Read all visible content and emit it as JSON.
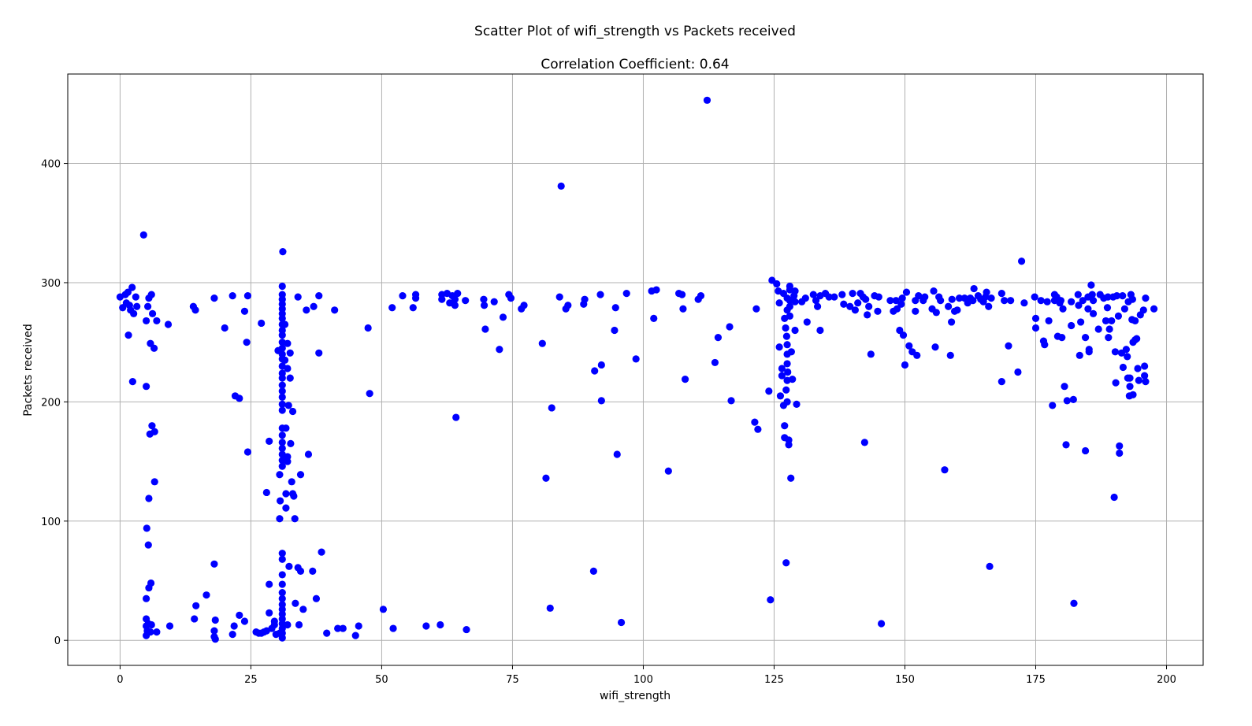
{
  "chart_data": {
    "type": "scatter",
    "title": "Scatter Plot of wifi_strength vs Packets received",
    "subtitle": "Correlation Coefficient: 0.64",
    "xlabel": "wifi_strength",
    "ylabel": "Packets received",
    "xlim": [
      -10,
      207
    ],
    "ylim": [
      -21,
      475
    ],
    "xticks": [
      0,
      25,
      50,
      75,
      100,
      125,
      150,
      175,
      200
    ],
    "yticks": [
      0,
      100,
      200,
      300,
      400
    ],
    "grid": true,
    "marker_color": "#0000ff",
    "points": [
      [
        0,
        288
      ],
      [
        0.5,
        279
      ],
      [
        1,
        290
      ],
      [
        1.2,
        283
      ],
      [
        1.5,
        292
      ],
      [
        1.8,
        281
      ],
      [
        2,
        277
      ],
      [
        2.3,
        296
      ],
      [
        2.6,
        274
      ],
      [
        3,
        288
      ],
      [
        3.2,
        280
      ],
      [
        1.6,
        256
      ],
      [
        2.4,
        217
      ],
      [
        4.5,
        340
      ],
      [
        5,
        268
      ],
      [
        5,
        213
      ],
      [
        5.3,
        280
      ],
      [
        5.5,
        287
      ],
      [
        5.8,
        249
      ],
      [
        6,
        290
      ],
      [
        6.2,
        274
      ],
      [
        6.5,
        245
      ],
      [
        7,
        268
      ],
      [
        9.2,
        265
      ],
      [
        5.7,
        173
      ],
      [
        6.1,
        180
      ],
      [
        6.6,
        175
      ],
      [
        6.6,
        133
      ],
      [
        5.5,
        119
      ],
      [
        5.1,
        94
      ],
      [
        5.4,
        80
      ],
      [
        5.9,
        48
      ],
      [
        5.5,
        44
      ],
      [
        5,
        35
      ],
      [
        5,
        18
      ],
      [
        5,
        12
      ],
      [
        5.2,
        8
      ],
      [
        5,
        4
      ],
      [
        5.4,
        14
      ],
      [
        6,
        13
      ],
      [
        5.8,
        7
      ],
      [
        7,
        7
      ],
      [
        9.5,
        12
      ],
      [
        14,
        280
      ],
      [
        14.4,
        277
      ],
      [
        14.5,
        29
      ],
      [
        14.2,
        18
      ],
      [
        16.5,
        38
      ],
      [
        18,
        287
      ],
      [
        18,
        64
      ],
      [
        18.2,
        17
      ],
      [
        18,
        8
      ],
      [
        18,
        3
      ],
      [
        18.2,
        1
      ],
      [
        20,
        262
      ],
      [
        21.5,
        289
      ],
      [
        21.8,
        12
      ],
      [
        21.5,
        5
      ],
      [
        22,
        205
      ],
      [
        22.8,
        203
      ],
      [
        22.8,
        21
      ],
      [
        23.8,
        276
      ],
      [
        23.8,
        16
      ],
      [
        24.2,
        250
      ],
      [
        24.4,
        289
      ],
      [
        24.4,
        158
      ],
      [
        26,
        7
      ],
      [
        26.5,
        6
      ],
      [
        27,
        266
      ],
      [
        27,
        6
      ],
      [
        27.5,
        7
      ],
      [
        28,
        8
      ],
      [
        28,
        124
      ],
      [
        28.5,
        167
      ],
      [
        28.5,
        23
      ],
      [
        28.5,
        47
      ],
      [
        29,
        10
      ],
      [
        29.5,
        13
      ],
      [
        29.5,
        16
      ],
      [
        29.8,
        5
      ],
      [
        30.2,
        243
      ],
      [
        30.5,
        139
      ],
      [
        30.6,
        117
      ],
      [
        30.5,
        102
      ],
      [
        30.5,
        6
      ],
      [
        31,
        297
      ],
      [
        31,
        290
      ],
      [
        31,
        286
      ],
      [
        31,
        282
      ],
      [
        31,
        278
      ],
      [
        31,
        274
      ],
      [
        31,
        270
      ],
      [
        31,
        265
      ],
      [
        31,
        260
      ],
      [
        31,
        256
      ],
      [
        31,
        250
      ],
      [
        31,
        245
      ],
      [
        31,
        240
      ],
      [
        31,
        236
      ],
      [
        31,
        230
      ],
      [
        31,
        224
      ],
      [
        31,
        220
      ],
      [
        31,
        214
      ],
      [
        31,
        209
      ],
      [
        31,
        204
      ],
      [
        31,
        198
      ],
      [
        31,
        193
      ],
      [
        31,
        178
      ],
      [
        31,
        172
      ],
      [
        31,
        166
      ],
      [
        31,
        161
      ],
      [
        31,
        156
      ],
      [
        31,
        151
      ],
      [
        31,
        146
      ],
      [
        31,
        73
      ],
      [
        31,
        68
      ],
      [
        31,
        55
      ],
      [
        31,
        47
      ],
      [
        31,
        40
      ],
      [
        31,
        35
      ],
      [
        31,
        30
      ],
      [
        31,
        26
      ],
      [
        31,
        22
      ],
      [
        31,
        18
      ],
      [
        31,
        14
      ],
      [
        31,
        10
      ],
      [
        31,
        6
      ],
      [
        31,
        2
      ],
      [
        31.1,
        326
      ],
      [
        31.5,
        235
      ],
      [
        31.5,
        265
      ],
      [
        31.7,
        178
      ],
      [
        31.7,
        123
      ],
      [
        31.7,
        111
      ],
      [
        32,
        249
      ],
      [
        32,
        228
      ],
      [
        32,
        150
      ],
      [
        32,
        154
      ],
      [
        32,
        13
      ],
      [
        32.2,
        197
      ],
      [
        32.3,
        62
      ],
      [
        32.5,
        220
      ],
      [
        32.5,
        241
      ],
      [
        32.6,
        165
      ],
      [
        32.8,
        133
      ],
      [
        33,
        123
      ],
      [
        33,
        192
      ],
      [
        33.2,
        121
      ],
      [
        33.4,
        102
      ],
      [
        33.5,
        31
      ],
      [
        34,
        288
      ],
      [
        34,
        61
      ],
      [
        34.2,
        13
      ],
      [
        34.5,
        139
      ],
      [
        34.5,
        58
      ],
      [
        35,
        26
      ],
      [
        35.6,
        277
      ],
      [
        36,
        156
      ],
      [
        36.8,
        58
      ],
      [
        37,
        280
      ],
      [
        37.5,
        35
      ],
      [
        38,
        241
      ],
      [
        38,
        289
      ],
      [
        38.5,
        74
      ],
      [
        39.5,
        6
      ],
      [
        41,
        277
      ],
      [
        41.6,
        10
      ],
      [
        42.6,
        10
      ],
      [
        45,
        4
      ],
      [
        45.6,
        12
      ],
      [
        47.4,
        262
      ],
      [
        47.7,
        207
      ],
      [
        50.3,
        26
      ],
      [
        52,
        279
      ],
      [
        52.2,
        10
      ],
      [
        54,
        289
      ],
      [
        56,
        279
      ],
      [
        56.5,
        287
      ],
      [
        56.5,
        290
      ],
      [
        58.5,
        12
      ],
      [
        61.2,
        13
      ],
      [
        61.5,
        286
      ],
      [
        61.5,
        290
      ],
      [
        62.5,
        291
      ],
      [
        63,
        283
      ],
      [
        63.5,
        289
      ],
      [
        64,
        281
      ],
      [
        64,
        286
      ],
      [
        64.5,
        291
      ],
      [
        64.2,
        187
      ],
      [
        66,
        285
      ],
      [
        66.2,
        9
      ],
      [
        69.5,
        286
      ],
      [
        69.8,
        261
      ],
      [
        69.6,
        281
      ],
      [
        71.5,
        284
      ],
      [
        72.5,
        244
      ],
      [
        73.2,
        271
      ],
      [
        74.3,
        290
      ],
      [
        74.7,
        287
      ],
      [
        76.7,
        278
      ],
      [
        77.2,
        281
      ],
      [
        80.7,
        249
      ],
      [
        81.4,
        136
      ],
      [
        82.2,
        27
      ],
      [
        82.5,
        195
      ],
      [
        84,
        288
      ],
      [
        84.3,
        381
      ],
      [
        85.2,
        278
      ],
      [
        85.6,
        281
      ],
      [
        88.6,
        282
      ],
      [
        88.8,
        286
      ],
      [
        90.5,
        58
      ],
      [
        90.7,
        226
      ],
      [
        91.8,
        290
      ],
      [
        92,
        231
      ],
      [
        92,
        201
      ],
      [
        94.5,
        260
      ],
      [
        94.7,
        279
      ],
      [
        95,
        156
      ],
      [
        95.8,
        15
      ],
      [
        96.8,
        291
      ],
      [
        98.6,
        236
      ],
      [
        101.6,
        293
      ],
      [
        102,
        270
      ],
      [
        102.5,
        294
      ],
      [
        104.8,
        142
      ],
      [
        106.8,
        291
      ],
      [
        107.4,
        290
      ],
      [
        107.6,
        278
      ],
      [
        108,
        219
      ],
      [
        110.5,
        286
      ],
      [
        111,
        289
      ],
      [
        112.2,
        453
      ],
      [
        113.7,
        233
      ],
      [
        114.3,
        254
      ],
      [
        116.5,
        263
      ],
      [
        116.8,
        201
      ],
      [
        121.3,
        183
      ],
      [
        121.6,
        278
      ],
      [
        121.9,
        177
      ],
      [
        124,
        209
      ],
      [
        124.3,
        34
      ],
      [
        124.6,
        302
      ],
      [
        125.5,
        299
      ],
      [
        125.8,
        293
      ],
      [
        126,
        246
      ],
      [
        126,
        283
      ],
      [
        126.2,
        205
      ],
      [
        126.5,
        228
      ],
      [
        126.5,
        222
      ],
      [
        126.8,
        291
      ],
      [
        126.8,
        197
      ],
      [
        127,
        180
      ],
      [
        127,
        170
      ],
      [
        127.3,
        65
      ],
      [
        127,
        270
      ],
      [
        127.2,
        262
      ],
      [
        127.4,
        255
      ],
      [
        127.5,
        248
      ],
      [
        127.5,
        240
      ],
      [
        127.5,
        232
      ],
      [
        127.6,
        225
      ],
      [
        127.5,
        218
      ],
      [
        127.3,
        210
      ],
      [
        127.5,
        200
      ],
      [
        127.5,
        287
      ],
      [
        127.5,
        277
      ],
      [
        127.8,
        168
      ],
      [
        127.8,
        164
      ],
      [
        128,
        285
      ],
      [
        128,
        297
      ],
      [
        128,
        294
      ],
      [
        128,
        280
      ],
      [
        128,
        272
      ],
      [
        128.2,
        136
      ],
      [
        128.3,
        242
      ],
      [
        128.5,
        219
      ],
      [
        128.8,
        289
      ],
      [
        129,
        293
      ],
      [
        129,
        284
      ],
      [
        129,
        260
      ],
      [
        129.3,
        198
      ],
      [
        130.3,
        284
      ],
      [
        131,
        287
      ],
      [
        131.3,
        267
      ],
      [
        132.5,
        290
      ],
      [
        133,
        285
      ],
      [
        133.3,
        280
      ],
      [
        133.8,
        289
      ],
      [
        133.8,
        260
      ],
      [
        134.8,
        291
      ],
      [
        135.5,
        288
      ],
      [
        136.5,
        288
      ],
      [
        138,
        290
      ],
      [
        138.3,
        282
      ],
      [
        139.5,
        280
      ],
      [
        140,
        291
      ],
      [
        140.5,
        277
      ],
      [
        141,
        283
      ],
      [
        141.5,
        291
      ],
      [
        142,
        288
      ],
      [
        142.5,
        286
      ],
      [
        142.3,
        166
      ],
      [
        142.8,
        273
      ],
      [
        143.1,
        280
      ],
      [
        143.5,
        240
      ],
      [
        144.2,
        289
      ],
      [
        144.8,
        276
      ],
      [
        145,
        288
      ],
      [
        145.5,
        14
      ],
      [
        147.2,
        285
      ],
      [
        147.8,
        276
      ],
      [
        148.3,
        285
      ],
      [
        148.5,
        278
      ],
      [
        149,
        260
      ],
      [
        149.3,
        282
      ],
      [
        149.5,
        287
      ],
      [
        149.7,
        256
      ],
      [
        150,
        231
      ],
      [
        150.3,
        292
      ],
      [
        150.8,
        247
      ],
      [
        151.4,
        242
      ],
      [
        152,
        285
      ],
      [
        152,
        276
      ],
      [
        152.3,
        239
      ],
      [
        152.6,
        289
      ],
      [
        153.5,
        285
      ],
      [
        153.8,
        288
      ],
      [
        155.2,
        278
      ],
      [
        155.5,
        293
      ],
      [
        155.8,
        246
      ],
      [
        156,
        275
      ],
      [
        156.5,
        288
      ],
      [
        156.8,
        285
      ],
      [
        157.6,
        143
      ],
      [
        158.3,
        280
      ],
      [
        158.7,
        239
      ],
      [
        158.9,
        267
      ],
      [
        159,
        286
      ],
      [
        159.5,
        276
      ],
      [
        160,
        277
      ],
      [
        160.4,
        287
      ],
      [
        161.4,
        287
      ],
      [
        162,
        283
      ],
      [
        162.5,
        287
      ],
      [
        163,
        285
      ],
      [
        163.2,
        295
      ],
      [
        164,
        289
      ],
      [
        164.5,
        286
      ],
      [
        165,
        284
      ],
      [
        165.4,
        288
      ],
      [
        165.6,
        292
      ],
      [
        166.2,
        62
      ],
      [
        166,
        280
      ],
      [
        166.5,
        287
      ],
      [
        168.5,
        291
      ],
      [
        168.5,
        217
      ],
      [
        169,
        285
      ],
      [
        169.8,
        247
      ],
      [
        170.2,
        285
      ],
      [
        171.6,
        225
      ],
      [
        172.3,
        318
      ],
      [
        172.8,
        283
      ],
      [
        174.8,
        288
      ],
      [
        175,
        270
      ],
      [
        175,
        262
      ],
      [
        176,
        285
      ],
      [
        176.5,
        251
      ],
      [
        176.7,
        248
      ],
      [
        177.2,
        284
      ],
      [
        177.5,
        268
      ],
      [
        178.2,
        197
      ],
      [
        178.6,
        290
      ],
      [
        178.6,
        285
      ],
      [
        179,
        288
      ],
      [
        179.2,
        255
      ],
      [
        179.6,
        283
      ],
      [
        179.8,
        285
      ],
      [
        180,
        254
      ],
      [
        180.2,
        278
      ],
      [
        180.5,
        213
      ],
      [
        180.8,
        164
      ],
      [
        181,
        201
      ],
      [
        181.8,
        284
      ],
      [
        181.8,
        264
      ],
      [
        182.2,
        202
      ],
      [
        182.3,
        31
      ],
      [
        183.1,
        290
      ],
      [
        183.2,
        281
      ],
      [
        183.4,
        239
      ],
      [
        183.6,
        267
      ],
      [
        184,
        285
      ],
      [
        184.5,
        254
      ],
      [
        184.5,
        159
      ],
      [
        185,
        288
      ],
      [
        185,
        278
      ],
      [
        185.2,
        242
      ],
      [
        185.2,
        244
      ],
      [
        185.6,
        298
      ],
      [
        185.8,
        290
      ],
      [
        186,
        285
      ],
      [
        186,
        274
      ],
      [
        187,
        261
      ],
      [
        187.3,
        290
      ],
      [
        188,
        287
      ],
      [
        188.4,
        268
      ],
      [
        188.7,
        279
      ],
      [
        188.8,
        288
      ],
      [
        188.9,
        254
      ],
      [
        189.1,
        261
      ],
      [
        189.5,
        268
      ],
      [
        189.8,
        288
      ],
      [
        190,
        120
      ],
      [
        190.2,
        242
      ],
      [
        190.3,
        216
      ],
      [
        190.5,
        289
      ],
      [
        190.8,
        272
      ],
      [
        191,
        163
      ],
      [
        191,
        157
      ],
      [
        191.4,
        241
      ],
      [
        191.6,
        289
      ],
      [
        191.7,
        229
      ],
      [
        192,
        278
      ],
      [
        192.3,
        244
      ],
      [
        192.5,
        238
      ],
      [
        192.6,
        220
      ],
      [
        192.7,
        284
      ],
      [
        192.9,
        205
      ],
      [
        193,
        213
      ],
      [
        193,
        220
      ],
      [
        193.2,
        290
      ],
      [
        193.4,
        269
      ],
      [
        193.5,
        286
      ],
      [
        193.6,
        250
      ],
      [
        193.6,
        206
      ],
      [
        194,
        252
      ],
      [
        194,
        268
      ],
      [
        194.3,
        253
      ],
      [
        194.5,
        228
      ],
      [
        194.7,
        218
      ],
      [
        195,
        273
      ],
      [
        195.6,
        277
      ],
      [
        195.8,
        222
      ],
      [
        195.8,
        230
      ],
      [
        196,
        217
      ],
      [
        196,
        287
      ],
      [
        197.6,
        278
      ]
    ]
  }
}
